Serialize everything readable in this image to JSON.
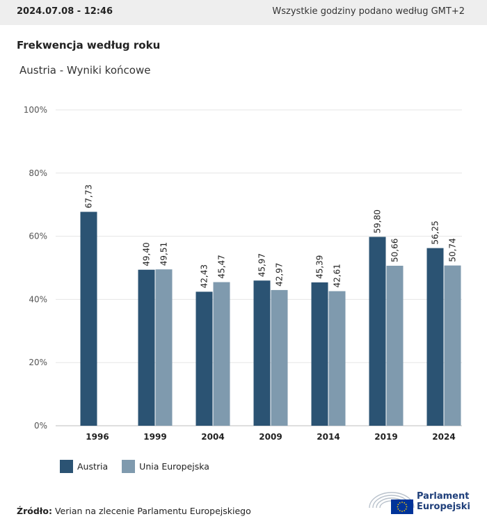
{
  "header": {
    "timestamp": "2024.07.08 - 12:46",
    "timezone_note": "Wszystkie godziny podano według GMT+2"
  },
  "chart_data": {
    "type": "bar",
    "title": "Frekwencja według roku",
    "subtitle": "Austria - Wyniki końcowe",
    "categories": [
      "1996",
      "1999",
      "2004",
      "2009",
      "2014",
      "2019",
      "2024"
    ],
    "series": [
      {
        "name": "Austria",
        "color": "#2b5373",
        "values": [
          67.73,
          49.4,
          42.43,
          45.97,
          45.39,
          59.8,
          56.25
        ]
      },
      {
        "name": "Unia Europejska",
        "color": "#7f9aae",
        "values": [
          null,
          49.51,
          45.47,
          42.97,
          42.61,
          50.66,
          50.74
        ]
      }
    ],
    "ylim": [
      0,
      100
    ],
    "yticks": [
      "0%",
      "20%",
      "40%",
      "60%",
      "80%",
      "100%"
    ],
    "ytick_values": [
      0,
      20,
      40,
      60,
      80,
      100
    ],
    "grid": true,
    "legend_position": "bottom-left"
  },
  "source": {
    "label": "Źródło:",
    "text": " Verian na zlecenie Parlamentu Europejskiego"
  },
  "logo": {
    "line1": "Parlament",
    "line2": "Europejski",
    "icon": "european-parliament-hemicycle-icon",
    "flag_color": "#003399",
    "star_color": "#ffcc00"
  }
}
